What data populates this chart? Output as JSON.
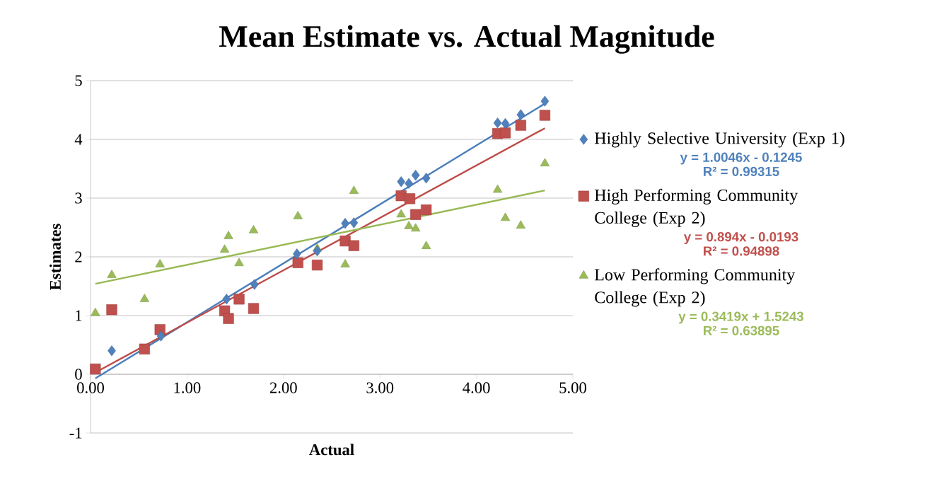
{
  "chart_data": {
    "type": "scatter",
    "title": "Mean Estimate vs. Actual Magnitude",
    "xlabel": "Actual",
    "ylabel": "Estimates",
    "xlim": [
      0,
      5
    ],
    "ylim": [
      -1,
      5
    ],
    "xticks": [
      {
        "value": 0,
        "label": "0.00"
      },
      {
        "value": 1,
        "label": "1.00"
      },
      {
        "value": 2,
        "label": "2.00"
      },
      {
        "value": 3,
        "label": "3.00"
      },
      {
        "value": 4,
        "label": "4.00"
      },
      {
        "value": 5,
        "label": "5.00"
      }
    ],
    "yticks": [
      -1,
      0,
      1,
      2,
      3,
      4,
      5
    ],
    "grid": "y",
    "legend": "right",
    "annotations": [
      "y = 1.0046x - 0.1245",
      "R² = 0.99315",
      "y = 0.894x - 0.0193",
      "R² = 0.94898",
      "y = 0.3419x + 1.5243",
      "R² = 0.63895"
    ],
    "series": [
      {
        "name": "Highly Selective University (Exp 1)",
        "marker": "diamond",
        "color": "#4f81bd",
        "x": [
          0.22,
          0.73,
          1.41,
          1.7,
          2.14,
          2.35,
          2.64,
          2.73,
          3.22,
          3.3,
          3.37,
          3.48,
          4.22,
          4.3,
          4.46,
          4.71
        ],
        "values": [
          0.4,
          0.65,
          1.28,
          1.53,
          2.05,
          2.1,
          2.57,
          2.58,
          3.28,
          3.25,
          3.39,
          3.34,
          4.28,
          4.27,
          4.42,
          4.65
        ]
      },
      {
        "name": "High Performing Community College (Exp 2)",
        "marker": "square",
        "color": "#c0504d",
        "x": [
          0.05,
          0.22,
          0.56,
          0.72,
          1.39,
          1.43,
          1.54,
          1.69,
          2.15,
          2.35,
          2.64,
          2.73,
          3.22,
          3.31,
          3.37,
          3.48,
          4.22,
          4.3,
          4.46,
          4.71
        ],
        "values": [
          0.09,
          1.1,
          0.43,
          0.76,
          1.08,
          0.95,
          1.28,
          1.12,
          1.9,
          1.86,
          2.27,
          2.19,
          3.04,
          2.99,
          2.72,
          2.8,
          4.1,
          4.11,
          4.24,
          4.41
        ]
      },
      {
        "name": "Low Performing Community College (Exp 2)",
        "marker": "triangle",
        "color": "#9bbb59",
        "x": [
          0.05,
          0.22,
          0.56,
          0.72,
          1.39,
          1.43,
          1.54,
          1.69,
          2.15,
          2.35,
          2.64,
          2.73,
          3.22,
          3.3,
          3.37,
          3.48,
          4.22,
          4.3,
          4.46,
          4.71
        ],
        "values": [
          1.04,
          1.69,
          1.28,
          1.87,
          2.12,
          2.35,
          1.89,
          2.45,
          2.69,
          2.14,
          1.87,
          3.12,
          2.72,
          2.52,
          2.48,
          2.18,
          3.14,
          2.66,
          2.53,
          3.59
        ]
      },
      {
        "type": "line",
        "marker": "none",
        "color": "#4a7ebb",
        "x": [
          0.05,
          4.71
        ],
        "values": [
          -0.07,
          4.61
        ]
      },
      {
        "type": "line",
        "marker": "none",
        "color": "#be4b48",
        "x": [
          0.05,
          4.71
        ],
        "values": [
          0.03,
          4.19
        ]
      },
      {
        "type": "line",
        "marker": "none",
        "color": "#98b954",
        "x": [
          0.05,
          4.71
        ],
        "values": [
          1.54,
          3.13
        ]
      }
    ]
  }
}
